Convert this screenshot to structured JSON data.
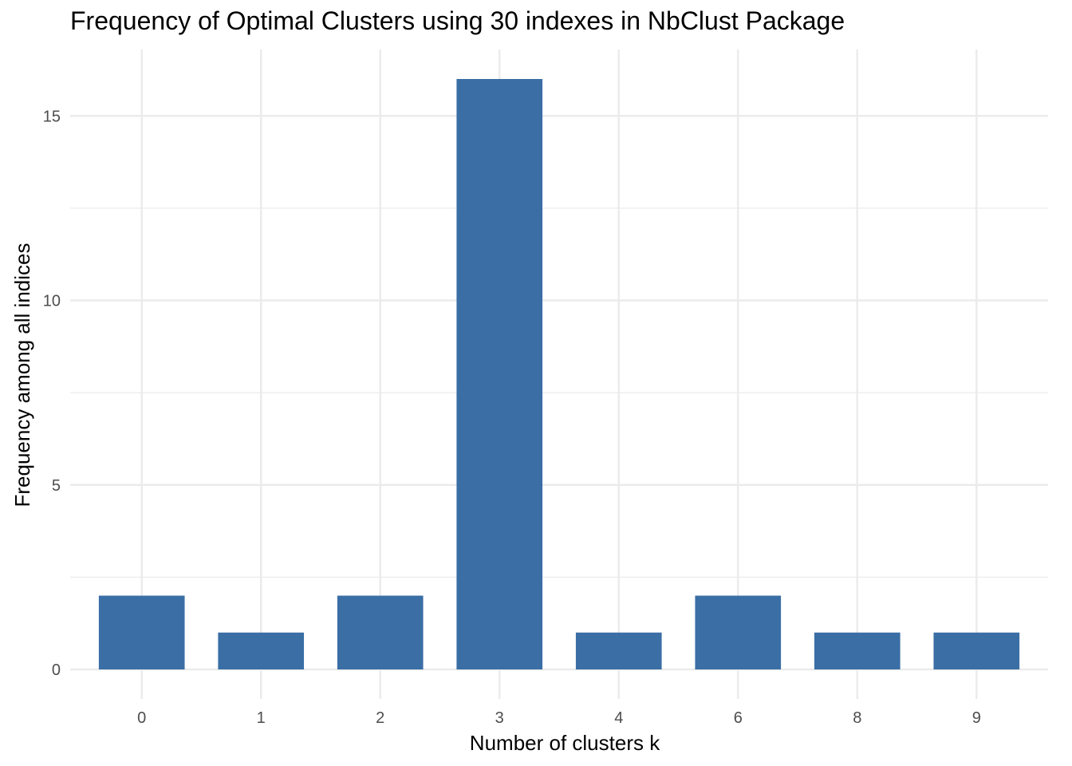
{
  "chart_data": {
    "type": "bar",
    "title": "Frequency of Optimal Clusters using 30 indexes in NbClust Package",
    "xlabel": "Number of clusters k",
    "ylabel": "Frequency among all indices",
    "categories": [
      "0",
      "1",
      "2",
      "3",
      "4",
      "6",
      "8",
      "9"
    ],
    "values": [
      2,
      1,
      2,
      16,
      1,
      2,
      1,
      1
    ],
    "ylim": [
      -0.8,
      16.8
    ],
    "yticks": [
      0,
      5,
      10,
      15
    ],
    "grid": true,
    "bar_color": "#3a6ea5",
    "grid_color": "#ebebeb"
  }
}
